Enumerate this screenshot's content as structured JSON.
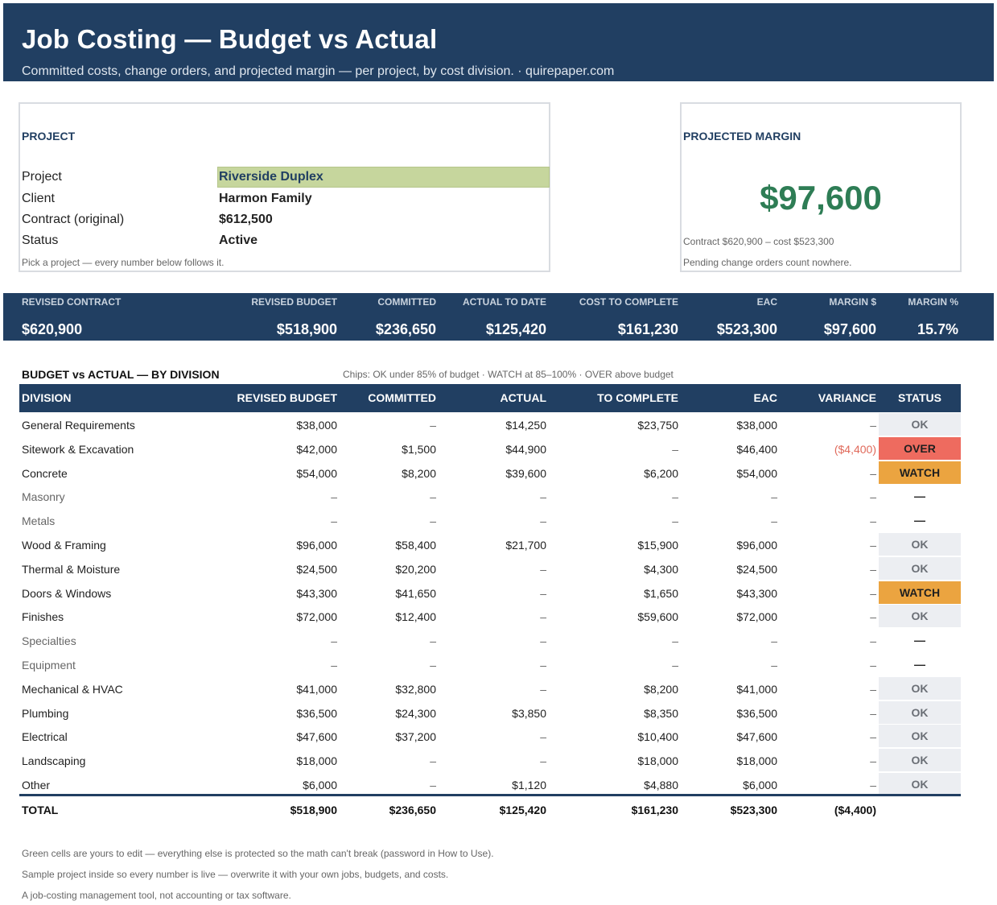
{
  "header": {
    "title": "Job Costing — Budget vs Actual",
    "subtitle": "Committed costs, change orders, and projected margin — per project, by cost division.  ·  quirepaper.com"
  },
  "project_box": {
    "heading": "PROJECT",
    "fields": [
      {
        "label": "Project",
        "value": "Riverside Duplex"
      },
      {
        "label": "Client",
        "value": "Harmon Family"
      },
      {
        "label": "Contract (original)",
        "value": "$612,500"
      },
      {
        "label": "Status",
        "value": "Active"
      }
    ],
    "note": "Pick a project — every number below follows it."
  },
  "margin_box": {
    "heading": "PROJECTED MARGIN",
    "value": "$97,600",
    "formula": "Contract $620,900  –  cost $523,300",
    "note": "Pending change orders count nowhere."
  },
  "kpis": [
    {
      "label": "REVISED CONTRACT",
      "value": "$620,900"
    },
    {
      "label": "REVISED BUDGET",
      "value": "$518,900"
    },
    {
      "label": "COMMITTED",
      "value": "$236,650"
    },
    {
      "label": "ACTUAL TO DATE",
      "value": "$125,420"
    },
    {
      "label": "COST TO COMPLETE",
      "value": "$161,230"
    },
    {
      "label": "EAC",
      "value": "$523,300"
    },
    {
      "label": "MARGIN $",
      "value": "$97,600"
    },
    {
      "label": "MARGIN %",
      "value": "15.7%"
    }
  ],
  "division_table": {
    "title": "BUDGET vs ACTUAL — BY DIVISION",
    "chips_note": "Chips: OK under 85% of budget · WATCH at 85–100% · OVER above budget",
    "columns": [
      "DIVISION",
      "REVISED BUDGET",
      "COMMITTED",
      "ACTUAL",
      "TO COMPLETE",
      "EAC",
      "VARIANCE",
      "STATUS"
    ],
    "rows": [
      {
        "division": "General Requirements",
        "budget": "$38,000",
        "committed": "–",
        "actual": "$14,250",
        "to_complete": "$23,750",
        "eac": "$38,000",
        "variance": "–",
        "status": "OK"
      },
      {
        "division": "Sitework & Excavation",
        "budget": "$42,000",
        "committed": "$1,500",
        "actual": "$44,900",
        "to_complete": "–",
        "eac": "$46,400",
        "variance": "($4,400)",
        "status": "OVER"
      },
      {
        "division": "Concrete",
        "budget": "$54,000",
        "committed": "$8,200",
        "actual": "$39,600",
        "to_complete": "$6,200",
        "eac": "$54,000",
        "variance": "–",
        "status": "WATCH"
      },
      {
        "division": "Masonry",
        "budget": "–",
        "committed": "–",
        "actual": "–",
        "to_complete": "–",
        "eac": "–",
        "variance": "–",
        "status": "—"
      },
      {
        "division": "Metals",
        "budget": "–",
        "committed": "–",
        "actual": "–",
        "to_complete": "–",
        "eac": "–",
        "variance": "–",
        "status": "—"
      },
      {
        "division": "Wood & Framing",
        "budget": "$96,000",
        "committed": "$58,400",
        "actual": "$21,700",
        "to_complete": "$15,900",
        "eac": "$96,000",
        "variance": "–",
        "status": "OK"
      },
      {
        "division": "Thermal & Moisture",
        "budget": "$24,500",
        "committed": "$20,200",
        "actual": "–",
        "to_complete": "$4,300",
        "eac": "$24,500",
        "variance": "–",
        "status": "OK"
      },
      {
        "division": "Doors & Windows",
        "budget": "$43,300",
        "committed": "$41,650",
        "actual": "–",
        "to_complete": "$1,650",
        "eac": "$43,300",
        "variance": "–",
        "status": "WATCH"
      },
      {
        "division": "Finishes",
        "budget": "$72,000",
        "committed": "$12,400",
        "actual": "–",
        "to_complete": "$59,600",
        "eac": "$72,000",
        "variance": "–",
        "status": "OK"
      },
      {
        "division": "Specialties",
        "budget": "–",
        "committed": "–",
        "actual": "–",
        "to_complete": "–",
        "eac": "–",
        "variance": "–",
        "status": "—"
      },
      {
        "division": "Equipment",
        "budget": "–",
        "committed": "–",
        "actual": "–",
        "to_complete": "–",
        "eac": "–",
        "variance": "–",
        "status": "—"
      },
      {
        "division": "Mechanical & HVAC",
        "budget": "$41,000",
        "committed": "$32,800",
        "actual": "–",
        "to_complete": "$8,200",
        "eac": "$41,000",
        "variance": "–",
        "status": "OK"
      },
      {
        "division": "Plumbing",
        "budget": "$36,500",
        "committed": "$24,300",
        "actual": "$3,850",
        "to_complete": "$8,350",
        "eac": "$36,500",
        "variance": "–",
        "status": "OK"
      },
      {
        "division": "Electrical",
        "budget": "$47,600",
        "committed": "$37,200",
        "actual": "–",
        "to_complete": "$10,400",
        "eac": "$47,600",
        "variance": "–",
        "status": "OK"
      },
      {
        "division": "Landscaping",
        "budget": "$18,000",
        "committed": "–",
        "actual": "–",
        "to_complete": "$18,000",
        "eac": "$18,000",
        "variance": "–",
        "status": "OK"
      },
      {
        "division": "Other",
        "budget": "$6,000",
        "committed": "–",
        "actual": "$1,120",
        "to_complete": "$4,880",
        "eac": "$6,000",
        "variance": "–",
        "status": "OK"
      }
    ],
    "total": {
      "division": "TOTAL",
      "budget": "$518,900",
      "committed": "$236,650",
      "actual": "$125,420",
      "to_complete": "$161,230",
      "eac": "$523,300",
      "variance": "($4,400)",
      "status": ""
    }
  },
  "footnotes": [
    "Green cells are yours to edit — everything else is protected so the math can't break (password in How to Use).",
    "Sample project inside so every number is live — overwrite it with your own jobs, budgets, and costs.",
    "A job-costing management tool, not accounting or tax software."
  ],
  "colors": {
    "navy": "#213f62",
    "input_green": "#c6d69d",
    "margin_green": "#2e7d55",
    "chip_ok": "#eceef2",
    "chip_over": "#ee6b5f",
    "chip_watch": "#eba440",
    "negative": "#e06a5b"
  }
}
